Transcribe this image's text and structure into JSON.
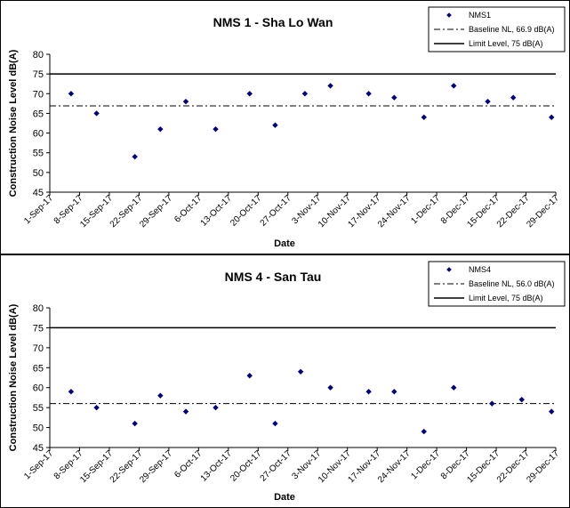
{
  "chart_data": [
    {
      "type": "scatter",
      "title": "NMS 1 - Sha Lo Wan",
      "xlabel": "Date",
      "ylabel": "Construction Noise Level  dB(A)",
      "ylim": [
        45,
        80
      ],
      "yticks": [
        45,
        50,
        55,
        60,
        65,
        70,
        75,
        80
      ],
      "xlim": [
        "2017-09-01",
        "2017-12-29"
      ],
      "xticks": [
        "1-Sep-17",
        "8-Sep-17",
        "15-Sep-17",
        "22-Sep-17",
        "29-Sep-17",
        "6-Oct-17",
        "13-Oct-17",
        "20-Oct-17",
        "27-Oct-17",
        "3-Nov-17",
        "10-Nov-17",
        "17-Nov-17",
        "24-Nov-17",
        "1-Dec-17",
        "8-Dec-17",
        "15-Dec-17",
        "22-Dec-17",
        "29-Dec-17"
      ],
      "grid": false,
      "legend_position": "top-right",
      "series": [
        {
          "name": "NMS1",
          "kind": "points",
          "color": "#000080",
          "x": [
            "2017-09-06",
            "2017-09-12",
            "2017-09-21",
            "2017-09-27",
            "2017-10-03",
            "2017-10-10",
            "2017-10-18",
            "2017-10-24",
            "2017-10-31",
            "2017-11-06",
            "2017-11-15",
            "2017-11-21",
            "2017-11-28",
            "2017-12-05",
            "2017-12-13",
            "2017-12-19",
            "2017-12-28"
          ],
          "y": [
            70,
            65,
            54,
            61,
            68,
            61,
            70,
            62,
            70,
            72,
            70,
            69,
            64,
            72,
            68,
            69,
            64
          ]
        },
        {
          "name": "Baseline NL, 66.9 dB(A)",
          "kind": "dashdot-line",
          "color": "#000000",
          "value": 66.9
        },
        {
          "name": "Limit Level, 75 dB(A)",
          "kind": "solid-line",
          "color": "#000000",
          "value": 75
        }
      ]
    },
    {
      "type": "scatter",
      "title": "NMS 4 - San Tau",
      "xlabel": "Date",
      "ylabel": "Construction Noise Level  dB(A)",
      "ylim": [
        45,
        80
      ],
      "yticks": [
        45,
        50,
        55,
        60,
        65,
        70,
        75,
        80
      ],
      "xlim": [
        "2017-09-01",
        "2017-12-29"
      ],
      "xticks": [
        "1-Sep-17",
        "8-Sep-17",
        "15-Sep-17",
        "22-Sep-17",
        "29-Sep-17",
        "6-Oct-17",
        "13-Oct-17",
        "20-Oct-17",
        "27-Oct-17",
        "3-Nov-17",
        "10-Nov-17",
        "17-Nov-17",
        "24-Nov-17",
        "1-Dec-17",
        "8-Dec-17",
        "15-Dec-17",
        "22-Dec-17",
        "29-Dec-17"
      ],
      "grid": false,
      "legend_position": "top-right",
      "series": [
        {
          "name": "NMS4",
          "kind": "points",
          "color": "#000080",
          "x": [
            "2017-09-06",
            "2017-09-12",
            "2017-09-21",
            "2017-09-27",
            "2017-10-03",
            "2017-10-10",
            "2017-10-18",
            "2017-10-24",
            "2017-10-30",
            "2017-11-06",
            "2017-11-15",
            "2017-11-21",
            "2017-11-28",
            "2017-12-05",
            "2017-12-14",
            "2017-12-21",
            "2017-12-28"
          ],
          "y": [
            59,
            55,
            51,
            58,
            54,
            55,
            63,
            51,
            64,
            60,
            59,
            59,
            49,
            60,
            56,
            57,
            54
          ]
        },
        {
          "name": "Baseline NL, 56.0 dB(A)",
          "kind": "dashdot-line",
          "color": "#000000",
          "value": 56.0
        },
        {
          "name": "Limit Level, 75 dB(A)",
          "kind": "solid-line",
          "color": "#000000",
          "value": 75
        }
      ]
    }
  ]
}
